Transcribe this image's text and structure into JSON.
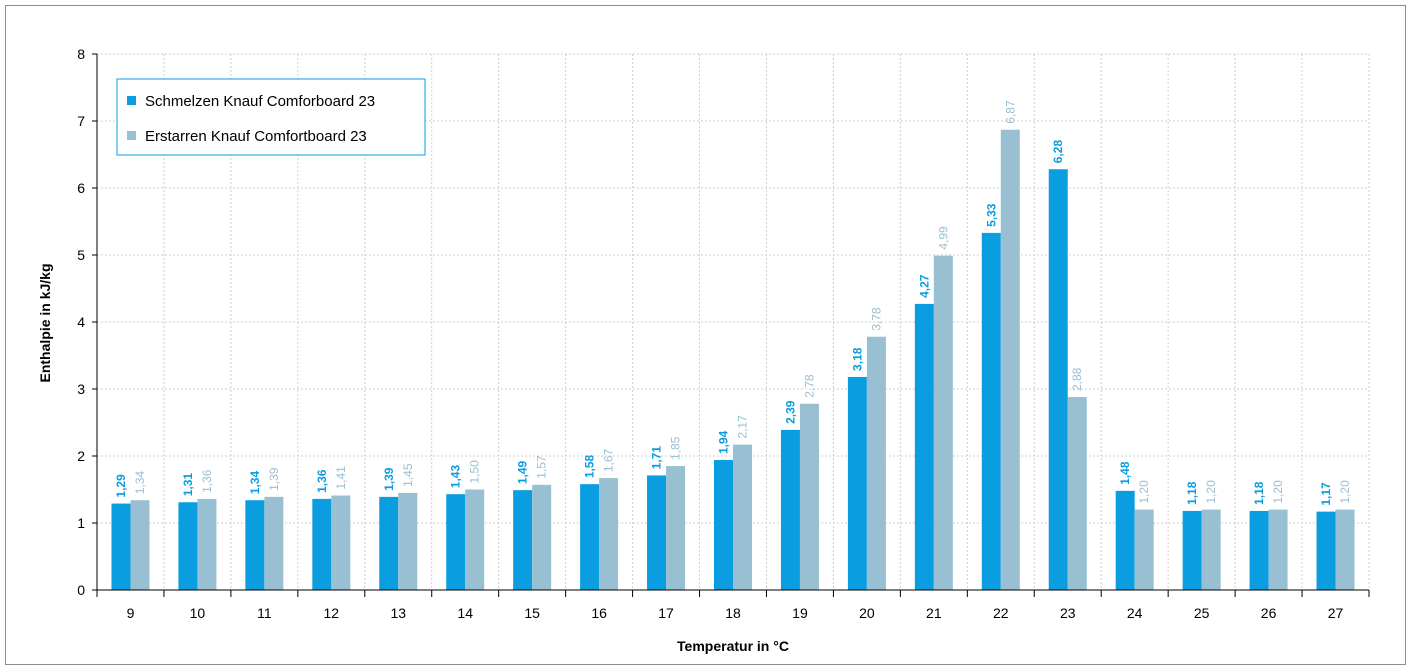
{
  "chart_data": {
    "type": "bar",
    "xlabel": "Temperatur in °C",
    "ylabel": "Enthalpie in kJ/kg",
    "ylim": [
      0,
      8
    ],
    "yticks": [
      "0",
      "1",
      "2",
      "3",
      "4",
      "5",
      "6",
      "7",
      "8"
    ],
    "grid": true,
    "legend_position": "top-left",
    "categories": [
      "9",
      "10",
      "11",
      "12",
      "13",
      "14",
      "15",
      "16",
      "17",
      "18",
      "19",
      "20",
      "21",
      "22",
      "23",
      "24",
      "25",
      "26",
      "27"
    ],
    "series": [
      {
        "name": "Schmelzen Knauf Comforboard 23",
        "color": "#0a9ee0",
        "values": [
          1.29,
          1.31,
          1.34,
          1.36,
          1.39,
          1.43,
          1.49,
          1.58,
          1.71,
          1.94,
          2.39,
          3.18,
          4.27,
          5.33,
          6.28,
          1.48,
          1.18,
          1.18,
          1.17
        ],
        "labels": [
          "1,29",
          "1,31",
          "1,34",
          "1,36",
          "1,39",
          "1,43",
          "1,49",
          "1,58",
          "1,71",
          "1,94",
          "2,39",
          "3,18",
          "4,27",
          "5,33",
          "6,28",
          "1,48",
          "1,18",
          "1,18",
          "1,17"
        ]
      },
      {
        "name": "Erstarren Knauf Comfortboard 23",
        "color": "#98bfd2",
        "values": [
          1.34,
          1.36,
          1.39,
          1.41,
          1.45,
          1.5,
          1.57,
          1.67,
          1.85,
          2.17,
          2.78,
          3.78,
          4.99,
          6.87,
          2.88,
          1.2,
          1.2,
          1.2,
          1.2
        ],
        "labels": [
          "1,34",
          "1,36",
          "1,39",
          "1,41",
          "1,45",
          "1,50",
          "1,57",
          "1,67",
          "1,85",
          "2,17",
          "2,78",
          "3,78",
          "4,99",
          "6,87",
          "2,88",
          "1,20",
          "1,20",
          "1,20",
          "1,20"
        ]
      }
    ]
  }
}
